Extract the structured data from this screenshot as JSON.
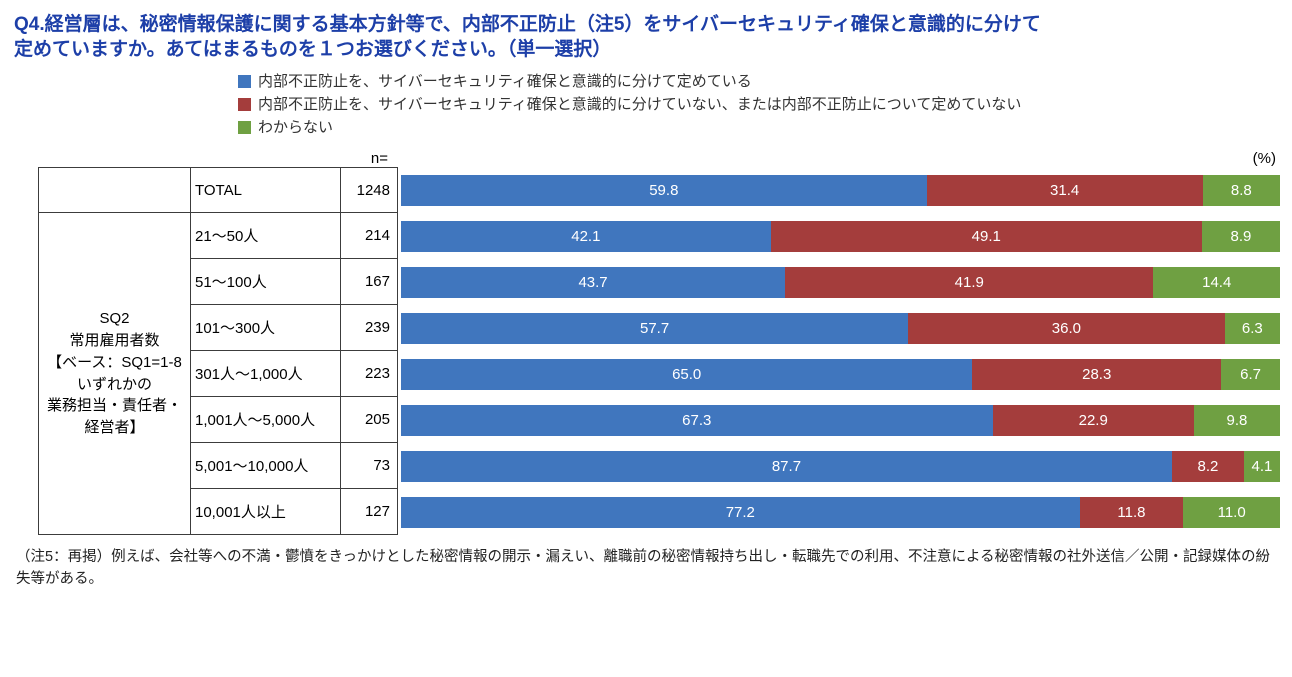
{
  "title": {
    "line1": "Q4.経営層は、秘密情報保護に関する基本方針等で、内部不正防止（注5）をサイバーセキュリティ確保と意識的に分けて",
    "line2": "定めていますか。あてはまるものを１つお選びください。（単一選択）"
  },
  "axis_labels": {
    "n_label": "n=",
    "unit_label": "(%)"
  },
  "chart_data": {
    "type": "bar",
    "stacked": true,
    "orientation": "horizontal",
    "unit": "%",
    "xlim": [
      0,
      100
    ],
    "legend_position": "top",
    "series": [
      {
        "name": "内部不正防止を、サイバーセキュリティ確保と意識的に分けて定めている",
        "color": "#4076be"
      },
      {
        "name": "内部不正防止を、サイバーセキュリティ確保と意識的に分けていない、または内部不正防止について定めていない",
        "color": "#a43d3c"
      },
      {
        "name": "わからない",
        "color": "#6fa042"
      }
    ],
    "group_label": "SQ2\n常用雇用者数\n【ベース：SQ1=1-8\nいずれかの\n業務担当・責任者・\n経営者】",
    "rows": [
      {
        "label": "TOTAL",
        "n": 1248,
        "values": [
          59.8,
          31.4,
          8.8
        ]
      },
      {
        "label": "21～50人",
        "n": 214,
        "values": [
          42.1,
          49.1,
          8.9
        ]
      },
      {
        "label": "51～100人",
        "n": 167,
        "values": [
          43.7,
          41.9,
          14.4
        ]
      },
      {
        "label": "101～300人",
        "n": 239,
        "values": [
          57.7,
          36.0,
          6.3
        ]
      },
      {
        "label": "301人～1,000人",
        "n": 223,
        "values": [
          65.0,
          28.3,
          6.7
        ]
      },
      {
        "label": "1,001人～5,000人",
        "n": 205,
        "values": [
          67.3,
          22.9,
          9.8
        ]
      },
      {
        "label": "5,001～10,000人",
        "n": 73,
        "values": [
          87.7,
          8.2,
          4.1
        ]
      },
      {
        "label": "10,001人以上",
        "n": 127,
        "values": [
          77.2,
          11.8,
          11.0
        ]
      }
    ]
  },
  "footnote": {
    "text": "（注5：再掲）例えば、会社等への不満・鬱憤をきっかけとした秘密情報の開示・漏えい、離職前の秘密情報持ち出し・転職先での利用、不注意による秘密情報の社外送信／公開・記録媒体の紛失等がある。"
  }
}
